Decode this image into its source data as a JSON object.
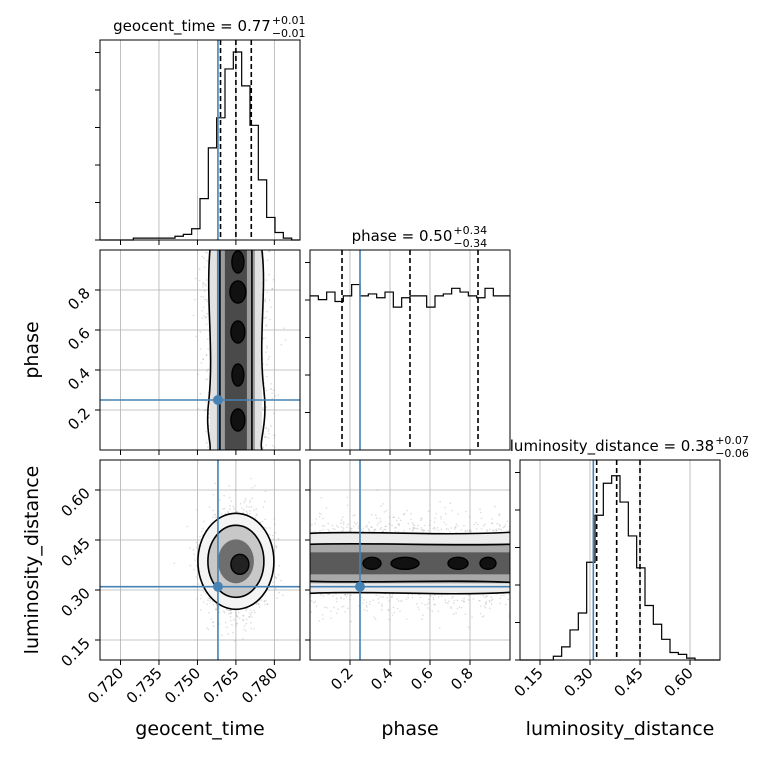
{
  "chart_data": {
    "type": "corner",
    "parameters": [
      "geocent_time",
      "phase",
      "luminosity_distance"
    ],
    "axes": {
      "geocent_time": {
        "label": "geocent_time",
        "range": [
          0.712,
          0.79
        ],
        "ticks": [
          0.72,
          0.735,
          0.75,
          0.765,
          0.78
        ],
        "tick_labels": [
          "0.720",
          "0.735",
          "0.750",
          "0.765",
          "0.780"
        ]
      },
      "phase": {
        "label": "phase",
        "range": [
          0.0,
          1.0
        ],
        "ticks": [
          0.2,
          0.4,
          0.6,
          0.8
        ],
        "tick_labels": [
          "0.2",
          "0.4",
          "0.6",
          "0.8"
        ]
      },
      "luminosity_distance": {
        "label": "luminosity_distance",
        "range": [
          0.09,
          0.69
        ],
        "ticks": [
          0.15,
          0.3,
          0.45,
          0.6
        ],
        "tick_labels": [
          "0.15",
          "0.30",
          "0.45",
          "0.60"
        ]
      }
    },
    "grid": true,
    "titles": {
      "geocent_time": {
        "name": "geocent_time",
        "median": "0.77",
        "plus": "+0.01",
        "minus": "−0.01"
      },
      "phase": {
        "name": "phase",
        "median": "0.50",
        "plus": "+0.34",
        "minus": "−0.34"
      },
      "luminosity_distance": {
        "name": "luminosity_distance",
        "median": "0.38",
        "plus": "+0.07",
        "minus": "−0.06"
      }
    },
    "truths": {
      "geocent_time": 0.758,
      "phase": 0.25,
      "luminosity_distance": 0.31
    },
    "quantiles": {
      "geocent_time": [
        0.759,
        0.765,
        0.771
      ],
      "phase": [
        0.16,
        0.5,
        0.84
      ],
      "luminosity_distance": [
        0.32,
        0.38,
        0.45
      ]
    },
    "histograms": {
      "geocent_time": [
        0,
        0,
        0,
        0,
        0.01,
        0.01,
        0.01,
        0.01,
        0.01,
        0.02,
        0.03,
        0.06,
        0.22,
        0.49,
        0.65,
        0.91,
        1.0,
        0.82,
        0.61,
        0.32,
        0.12,
        0.04,
        0.01,
        0
      ],
      "phase": [
        0.82,
        0.8,
        0.84,
        0.79,
        0.82,
        0.88,
        0.82,
        0.83,
        0.81,
        0.84,
        0.76,
        0.81,
        0.82,
        0.82,
        0.76,
        0.82,
        0.83,
        0.86,
        0.84,
        0.82,
        0.81,
        0.86,
        0.82,
        0.82
      ],
      "luminosity_distance": [
        0,
        0,
        0,
        0,
        0.02,
        0.07,
        0.16,
        0.25,
        0.52,
        0.77,
        0.94,
        0.98,
        0.84,
        0.66,
        0.49,
        0.29,
        0.19,
        0.11,
        0.04,
        0.03,
        0.01,
        0,
        0,
        0
      ]
    }
  }
}
